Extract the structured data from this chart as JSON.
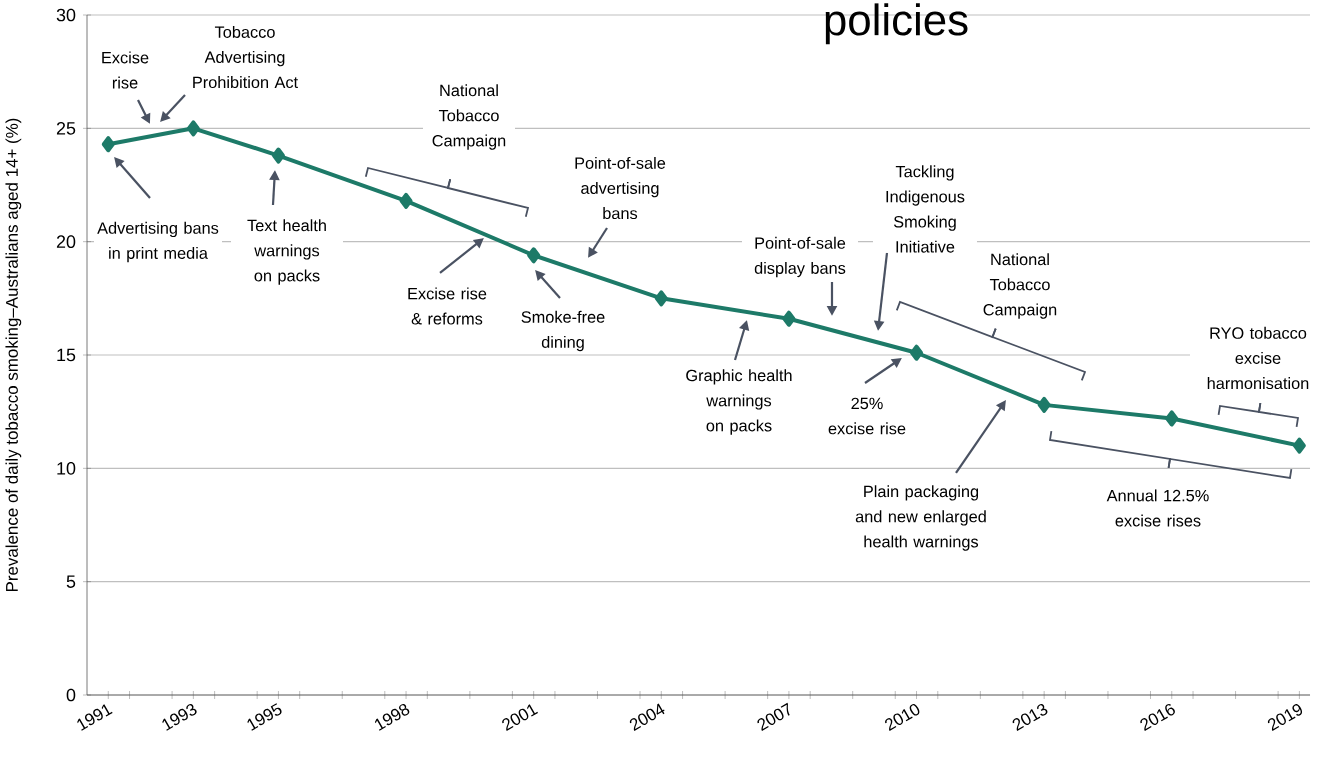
{
  "chart_data": {
    "type": "line",
    "title": "policies",
    "ylabel": "Prevalence of daily tobacco smoking–Australians aged 14+ (%)",
    "x": [
      1991,
      1993,
      1995,
      1998,
      2001,
      2004,
      2007,
      2010,
      2013,
      2016,
      2019
    ],
    "values": [
      24.3,
      25.0,
      23.8,
      21.8,
      19.4,
      17.5,
      16.6,
      15.1,
      12.8,
      12.2,
      11.0
    ],
    "color": "#1d7a68",
    "marker": "diamond",
    "line_style": "solid",
    "grid": "y",
    "xlim": [
      1990.5,
      2019.25
    ],
    "ylim": [
      0,
      30
    ],
    "yticks": [
      0,
      5,
      10,
      15,
      20,
      25,
      30
    ],
    "xticks": [
      {
        "value": 1991,
        "label": "1991"
      },
      {
        "value": 1993,
        "label": "1993"
      },
      {
        "value": 1995,
        "label": "1995"
      },
      {
        "value": 1998,
        "label": "1998"
      },
      {
        "value": 2001,
        "label": "2001"
      },
      {
        "value": 2004,
        "label": "2004"
      },
      {
        "value": 2007,
        "label": "2007"
      },
      {
        "value": 2010,
        "label": "2010"
      },
      {
        "value": 2013,
        "label": "2013"
      },
      {
        "value": 2016,
        "label": "2016"
      },
      {
        "value": 2019,
        "label": "2019"
      },
      {
        "value": 1991.5,
        "label": null
      },
      {
        "value": 1992.5,
        "label": null
      },
      {
        "value": 1993.5,
        "label": null
      },
      {
        "value": 1994.5,
        "label": null
      },
      {
        "value": 1995.5,
        "label": null
      },
      {
        "value": 1996.5,
        "label": null
      },
      {
        "value": 1997.5,
        "label": null
      },
      {
        "value": 1998.5,
        "label": null
      },
      {
        "value": 1999.5,
        "label": null
      },
      {
        "value": 2000.5,
        "label": null
      },
      {
        "value": 2001.5,
        "label": null
      },
      {
        "value": 2002.5,
        "label": null
      },
      {
        "value": 2003.5,
        "label": null
      },
      {
        "value": 2004.5,
        "label": null
      },
      {
        "value": 2005.5,
        "label": null
      },
      {
        "value": 2006.5,
        "label": null
      },
      {
        "value": 2007.5,
        "label": null
      },
      {
        "value": 2008.5,
        "label": null
      },
      {
        "value": 2009.5,
        "label": null
      },
      {
        "value": 2010.5,
        "label": null
      },
      {
        "value": 2011.5,
        "label": null
      },
      {
        "value": 2012.5,
        "label": null
      },
      {
        "value": 2013.5,
        "label": null
      },
      {
        "value": 2014.5,
        "label": null
      },
      {
        "value": 2015.5,
        "label": null
      },
      {
        "value": 2016.5,
        "label": null
      },
      {
        "value": 2017.5,
        "label": null
      },
      {
        "value": 2018.5,
        "label": null
      }
    ],
    "annotations": [
      "Excise rise",
      "Tobacco Advertising Prohibition Act",
      "Advertising bans in print media",
      "Text health warnings on packs",
      "National Tobacco Campaign",
      "Excise rise & reforms",
      "Smoke-free dining",
      "Point-of-sale advertising bans",
      "Point-of-sale display bans",
      "Graphic health warnings on packs",
      "Tackling Indigenous Smoking Initiative",
      "National Tobacco Campaign",
      "25% excise rise",
      "Plain packaging and new enlarged health warnings",
      "Annual 12.5% excise rises",
      "RYO tobacco excise harmonisation"
    ]
  }
}
